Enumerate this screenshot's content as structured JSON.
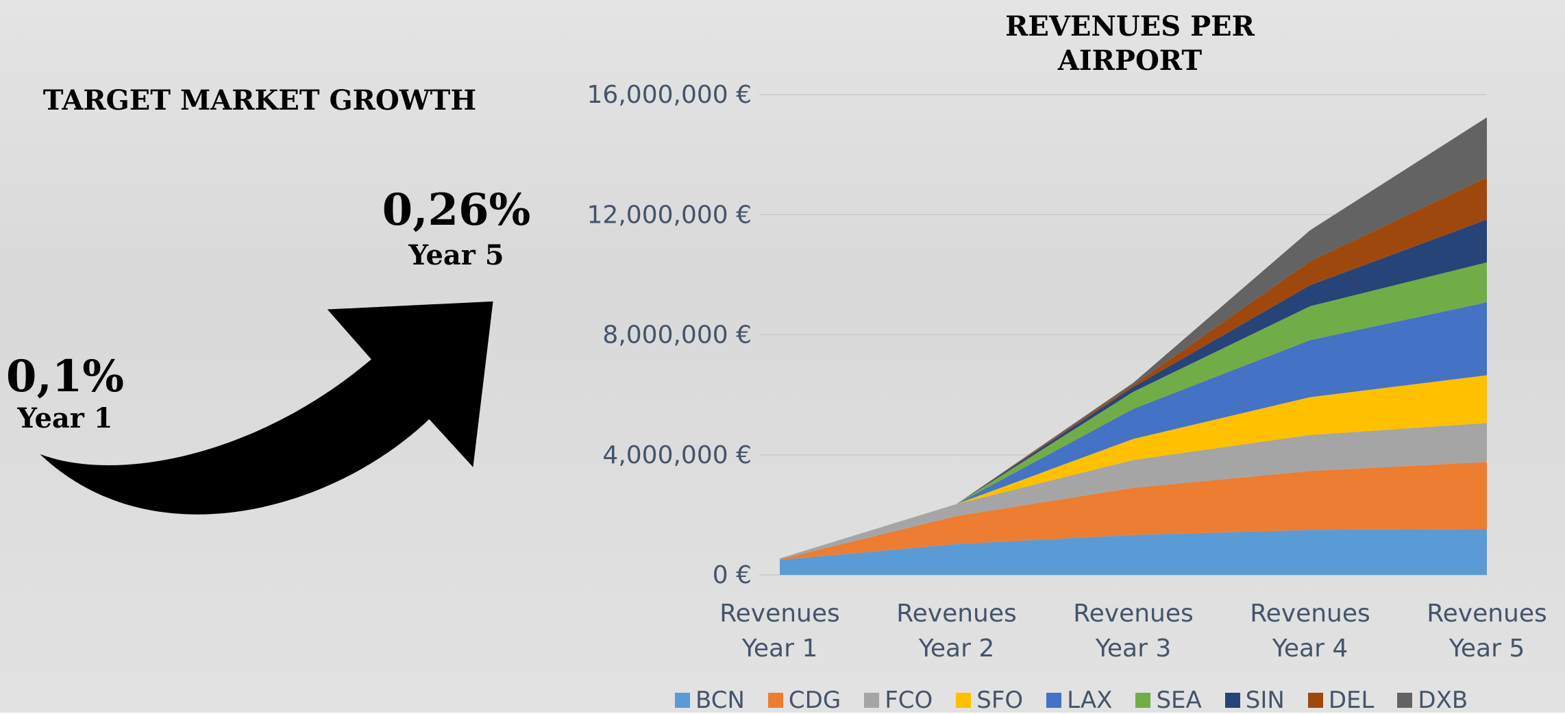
{
  "infographic": {
    "title": "TARGET MARKET GROWTH",
    "start_value": "0,1%",
    "start_label": "Year 1",
    "end_value": "0,26%",
    "end_label": "Year 5"
  },
  "chart_data": {
    "type": "stacked_area",
    "title": "REVENUES PER AIRPORT",
    "categories": [
      "Revenues Year 1",
      "Revenues Year 2",
      "Revenues Year 3",
      "Revenues Year 4",
      "Revenues Year 5"
    ],
    "series": [
      {
        "name": "BCN",
        "color": "#5b9bd5",
        "values": [
          500000,
          1030000,
          1330000,
          1500000,
          1530000
        ]
      },
      {
        "name": "CDG",
        "color": "#ed7d31",
        "values": [
          20000,
          930000,
          1570000,
          1960000,
          2230000
        ]
      },
      {
        "name": "FCO",
        "color": "#a5a5a5",
        "values": [
          30000,
          400000,
          930000,
          1200000,
          1300000
        ]
      },
      {
        "name": "SFO",
        "color": "#ffc000",
        "values": [
          0,
          0,
          700000,
          1260000,
          1590000
        ]
      },
      {
        "name": "LAX",
        "color": "#4472c4",
        "values": [
          0,
          0,
          1000000,
          1900000,
          2430000
        ]
      },
      {
        "name": "SEA",
        "color": "#70ad47",
        "values": [
          0,
          0,
          570000,
          1130000,
          1330000
        ]
      },
      {
        "name": "SIN",
        "color": "#264478",
        "values": [
          0,
          0,
          160000,
          700000,
          1430000
        ]
      },
      {
        "name": "DEL",
        "color": "#9e480e",
        "values": [
          0,
          0,
          70000,
          800000,
          1400000
        ]
      },
      {
        "name": "DXB",
        "color": "#636363",
        "values": [
          0,
          0,
          70000,
          1030000,
          2000000
        ]
      }
    ],
    "ylim": [
      0,
      16000000
    ],
    "yticks": [
      {
        "value": 0,
        "label": "0 €"
      },
      {
        "value": 4000000,
        "label": "4,000,000 €"
      },
      {
        "value": 8000000,
        "label": "8,000,000 €"
      },
      {
        "value": 12000000,
        "label": "12,000,000 €"
      },
      {
        "value": 16000000,
        "label": "16,000,000 €"
      }
    ],
    "grid": true,
    "legend": "bottom"
  }
}
